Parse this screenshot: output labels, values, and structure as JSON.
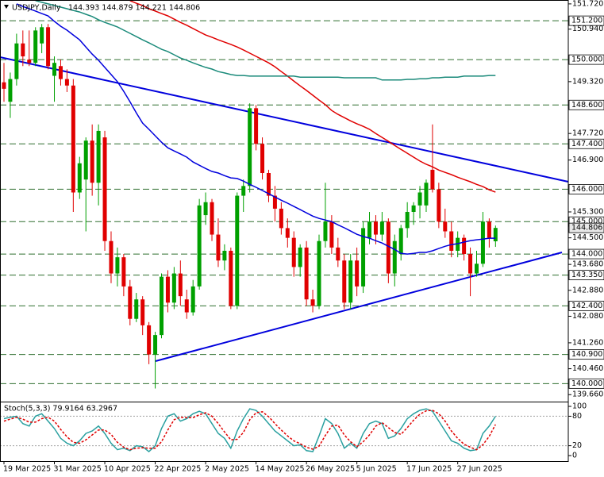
{
  "chart_data": [
    {
      "type": "candlestick",
      "title": "USDJPY,Daily",
      "ohlc_label": "144.393 144.879 144.221 144.806",
      "categories": [
        "19 Mar 2025",
        null,
        null,
        null,
        null,
        null,
        null,
        null,
        "31 Mar 2025",
        null,
        null,
        null,
        null,
        null,
        null,
        null,
        "10 Apr 2025",
        null,
        null,
        null,
        null,
        null,
        null,
        null,
        "22 Apr 2025",
        null,
        null,
        null,
        null,
        null,
        null,
        null,
        "2 May 2025",
        null,
        null,
        null,
        null,
        null,
        null,
        null,
        "14 May 2025",
        null,
        null,
        null,
        null,
        null,
        null,
        null,
        "26 May 2025",
        null,
        null,
        null,
        null,
        null,
        null,
        null,
        "5 Jun 2025",
        null,
        null,
        null,
        null,
        null,
        null,
        null,
        "17 Jun 2025",
        null,
        null,
        null,
        null,
        null,
        null,
        null,
        "27 Jun 2025",
        null,
        null,
        null,
        null,
        null,
        null
      ],
      "open": [
        149.3,
        148.7,
        149.4,
        150.5,
        150.0,
        149.9,
        150.5,
        151.0,
        149.5,
        149.8,
        149.4,
        149.2,
        145.9,
        146.3,
        147.5,
        146.2,
        147.6,
        144.4,
        143.4,
        143.9,
        143.0,
        142.0,
        142.6,
        141.8,
        140.9,
        141.5,
        143.3,
        142.5,
        143.4,
        142.6,
        142.2,
        143.0,
        145.2,
        145.6,
        144.6,
        143.8,
        144.1,
        142.4,
        145.8,
        146.1,
        148.5,
        147.4,
        146.5,
        145.8,
        145.4,
        144.8,
        144.5,
        143.6,
        144.2,
        142.6,
        142.4,
        144.4,
        145.0,
        144.2,
        143.8,
        142.5,
        143.8,
        143.0,
        144.5,
        145.0,
        144.6,
        145.0,
        143.4,
        144.0,
        144.8,
        145.3,
        145.5,
        145.5,
        146.6,
        146.0,
        145.0,
        144.7,
        144.1,
        144.5,
        144.0,
        143.4,
        143.7,
        145.0,
        144.393
      ],
      "high": [
        149.9,
        149.6,
        150.8,
        150.9,
        150.9,
        151.0,
        151.1,
        151.1,
        150.1,
        150.0,
        149.7,
        149.4,
        147.0,
        147.6,
        148.0,
        148.0,
        147.8,
        144.7,
        144.2,
        144.0,
        143.2,
        142.8,
        142.7,
        141.9,
        141.6,
        143.4,
        143.5,
        143.6,
        143.8,
        142.9,
        143.2,
        145.7,
        145.9,
        145.7,
        145.1,
        144.3,
        144.2,
        145.9,
        146.3,
        148.65,
        148.6,
        147.6,
        146.6,
        146.1,
        145.6,
        145.1,
        144.7,
        144.3,
        144.4,
        142.9,
        144.6,
        146.2,
        145.2,
        144.5,
        144.0,
        144.0,
        144.2,
        145.0,
        145.3,
        145.2,
        145.3,
        145.1,
        144.6,
        144.9,
        145.6,
        145.6,
        146.1,
        146.3,
        148.0,
        146.2,
        145.4,
        145.0,
        144.7,
        144.6,
        144.2,
        144.1,
        145.3,
        145.1,
        144.879
      ],
      "low": [
        148.7,
        148.2,
        149.2,
        149.8,
        149.8,
        149.8,
        150.2,
        149.7,
        148.7,
        149.2,
        149.0,
        145.3,
        145.7,
        144.7,
        145.8,
        145.5,
        144.1,
        143.1,
        143.0,
        142.7,
        141.8,
        141.9,
        141.5,
        140.6,
        139.85,
        141.4,
        142.2,
        142.3,
        142.4,
        142.0,
        142.1,
        142.9,
        144.9,
        144.4,
        143.6,
        143.5,
        142.3,
        142.3,
        145.3,
        145.9,
        147.2,
        146.3,
        145.6,
        145.0,
        144.6,
        144.2,
        143.3,
        143.3,
        142.4,
        142.2,
        142.3,
        144.2,
        144.0,
        143.6,
        142.3,
        142.3,
        142.7,
        142.8,
        144.3,
        144.3,
        144.4,
        143.1,
        143.0,
        143.8,
        144.5,
        144.9,
        145.1,
        145.3,
        145.9,
        144.8,
        144.5,
        143.9,
        143.9,
        143.8,
        142.7,
        143.3,
        143.6,
        144.2,
        144.221
      ],
      "close": [
        149.1,
        149.4,
        150.5,
        150.1,
        149.9,
        150.9,
        151.0,
        149.8,
        149.9,
        149.4,
        149.2,
        145.9,
        146.8,
        147.5,
        146.2,
        147.8,
        144.4,
        143.4,
        143.9,
        143.0,
        142.0,
        142.6,
        141.8,
        140.9,
        141.5,
        143.3,
        142.5,
        143.4,
        142.7,
        142.2,
        143.0,
        145.5,
        145.6,
        144.6,
        143.8,
        144.1,
        142.4,
        145.8,
        146.1,
        148.5,
        147.4,
        146.5,
        145.8,
        145.4,
        144.8,
        144.5,
        143.6,
        144.2,
        142.6,
        142.4,
        144.4,
        145.0,
        144.2,
        143.8,
        142.5,
        143.8,
        143.0,
        144.8,
        145.0,
        144.6,
        145.0,
        143.4,
        144.4,
        144.8,
        145.3,
        145.5,
        145.9,
        146.2,
        146.0,
        145.0,
        144.7,
        144.1,
        144.5,
        144.0,
        143.4,
        143.7,
        145.0,
        144.5,
        144.806
      ],
      "up_color": "#00a000",
      "down_color": "#e00000",
      "series": [
        {
          "color": "#0000dd",
          "values": [
            null,
            null,
            151.72,
            151.64,
            151.57,
            151.5,
            151.42,
            151.35,
            151.18,
            151.03,
            150.91,
            150.76,
            150.61,
            150.39,
            150.17,
            149.98,
            149.76,
            149.54,
            149.32,
            149.02,
            148.7,
            148.36,
            148.04,
            147.85,
            147.65,
            147.45,
            147.28,
            147.18,
            147.09,
            146.99,
            146.84,
            146.74,
            146.64,
            146.55,
            146.5,
            146.42,
            146.35,
            146.33,
            146.25,
            146.15,
            146.06,
            145.96,
            145.86,
            145.76,
            145.66,
            145.57,
            145.47,
            145.37,
            145.27,
            145.17,
            145.1,
            145.05,
            145.0,
            144.9,
            144.81,
            144.71,
            144.61,
            144.54,
            144.49,
            144.41,
            144.34,
            144.24,
            144.14,
            144.02,
            144.0,
            144.02,
            144.05,
            144.05,
            144.1,
            144.17,
            144.24,
            144.29,
            144.32,
            144.37,
            144.41,
            144.44,
            144.46,
            144.49,
            144.49
          ]
        },
        {
          "color": "#e00000",
          "values": [
            null,
            null,
            null,
            null,
            null,
            null,
            null,
            null,
            null,
            null,
            null,
            null,
            null,
            null,
            null,
            null,
            null,
            null,
            null,
            null,
            151.82,
            151.74,
            151.67,
            151.57,
            151.5,
            151.42,
            151.35,
            151.25,
            151.15,
            151.06,
            150.96,
            150.86,
            150.76,
            150.69,
            150.61,
            150.54,
            150.47,
            150.39,
            150.3,
            150.2,
            150.1,
            150.0,
            149.9,
            149.78,
            149.63,
            149.49,
            149.34,
            149.19,
            149.05,
            148.9,
            148.75,
            148.61,
            148.43,
            148.31,
            148.21,
            148.11,
            148.02,
            147.94,
            147.85,
            147.72,
            147.6,
            147.48,
            147.35,
            147.23,
            147.11,
            146.99,
            146.87,
            146.77,
            146.69,
            146.59,
            146.52,
            146.45,
            146.37,
            146.3,
            146.23,
            146.15,
            146.08,
            145.98,
            145.91
          ]
        },
        {
          "color": "#1a8a7a",
          "values": [
            null,
            null,
            null,
            null,
            null,
            151.82,
            151.77,
            151.72,
            151.67,
            151.62,
            151.57,
            151.52,
            151.47,
            151.4,
            151.33,
            151.23,
            151.15,
            151.08,
            151.01,
            150.91,
            150.81,
            150.71,
            150.61,
            150.52,
            150.42,
            150.32,
            150.25,
            150.15,
            150.05,
            149.98,
            149.9,
            149.83,
            149.76,
            149.71,
            149.63,
            149.59,
            149.54,
            149.51,
            149.51,
            149.49,
            149.49,
            149.49,
            149.49,
            149.49,
            149.49,
            149.49,
            149.49,
            149.46,
            149.46,
            149.46,
            149.46,
            149.46,
            149.46,
            149.46,
            149.44,
            149.44,
            149.44,
            149.44,
            149.44,
            149.44,
            149.37,
            149.37,
            149.37,
            149.37,
            149.39,
            149.39,
            149.41,
            149.41,
            149.44,
            149.44,
            149.46,
            149.46,
            149.46,
            149.49,
            149.49,
            149.49,
            149.49,
            149.51,
            149.51
          ]
        }
      ],
      "levels": [
        {
          "value": 151.2,
          "label": "151.200"
        },
        {
          "value": 150.0,
          "label": "150.000"
        },
        {
          "value": 148.6,
          "label": "148.600"
        },
        {
          "value": 147.4,
          "label": "147.400"
        },
        {
          "value": 146.0,
          "label": "146.000"
        },
        {
          "value": 145.0,
          "label": "145.000"
        },
        {
          "value": 144.0,
          "label": "144.000"
        },
        {
          "value": 143.35,
          "label": "143.350"
        },
        {
          "value": 142.4,
          "label": "142.400"
        },
        {
          "value": 140.9,
          "label": "140.900"
        },
        {
          "value": 140.0,
          "label": "140.000"
        }
      ],
      "level_color": "#2f6f2f",
      "last_price": {
        "value": 144.806,
        "label": "144.806"
      },
      "ylim": [
        139.47,
        151.84
      ],
      "yticks": [
        {
          "value": 151.72,
          "label": "151.720"
        },
        {
          "value": 150.94,
          "label": "150.940"
        },
        {
          "value": 149.32,
          "label": "149.320"
        },
        {
          "value": 147.72,
          "label": "147.720"
        },
        {
          "value": 146.9,
          "label": "146.900"
        },
        {
          "value": 145.3,
          "label": "145.300"
        },
        {
          "value": 144.5,
          "label": "144.500"
        },
        {
          "value": 143.68,
          "label": "143.680"
        },
        {
          "value": 142.88,
          "label": "142.880"
        },
        {
          "value": 142.08,
          "label": "142.080"
        },
        {
          "value": 141.26,
          "label": "141.260"
        },
        {
          "value": 140.46,
          "label": "140.460"
        },
        {
          "value": 139.66,
          "label": "139.660"
        }
      ]
    },
    {
      "type": "line",
      "title": "Stoch(5,3,3) 79.9164 63.2967",
      "series": [
        {
          "color": "#2aa0a0",
          "values": [
            75,
            78,
            80,
            65,
            60,
            80,
            85,
            70,
            55,
            35,
            25,
            20,
            30,
            45,
            50,
            60,
            45,
            25,
            12,
            15,
            10,
            20,
            18,
            8,
            20,
            55,
            80,
            85,
            70,
            75,
            85,
            90,
            85,
            65,
            45,
            35,
            15,
            50,
            75,
            95,
            92,
            80,
            65,
            50,
            40,
            30,
            20,
            22,
            10,
            8,
            40,
            75,
            65,
            45,
            15,
            25,
            15,
            45,
            65,
            70,
            65,
            35,
            40,
            55,
            75,
            85,
            92,
            95,
            90,
            70,
            50,
            30,
            25,
            15,
            10,
            12,
            45,
            60,
            79.9164
          ]
        },
        {
          "color": "#e00000",
          "dash": true,
          "values": [
            70,
            74,
            78,
            74,
            68,
            68,
            75,
            78,
            70,
            53,
            38,
            27,
            25,
            32,
            42,
            52,
            52,
            43,
            27,
            17,
            12,
            15,
            16,
            15,
            15,
            28,
            52,
            73,
            78,
            77,
            77,
            83,
            87,
            80,
            65,
            48,
            32,
            33,
            47,
            73,
            87,
            89,
            79,
            65,
            52,
            40,
            30,
            24,
            17,
            13,
            19,
            41,
            60,
            62,
            42,
            28,
            18,
            28,
            42,
            60,
            67,
            57,
            47,
            43,
            57,
            72,
            84,
            91,
            92,
            85,
            70,
            50,
            35,
            23,
            17,
            12,
            22,
            39,
            63.2967
          ]
        }
      ],
      "levels": [
        80,
        20
      ],
      "ylim": [
        -9.7,
        106.5
      ],
      "yticks": [
        100,
        80,
        20,
        0
      ]
    }
  ]
}
